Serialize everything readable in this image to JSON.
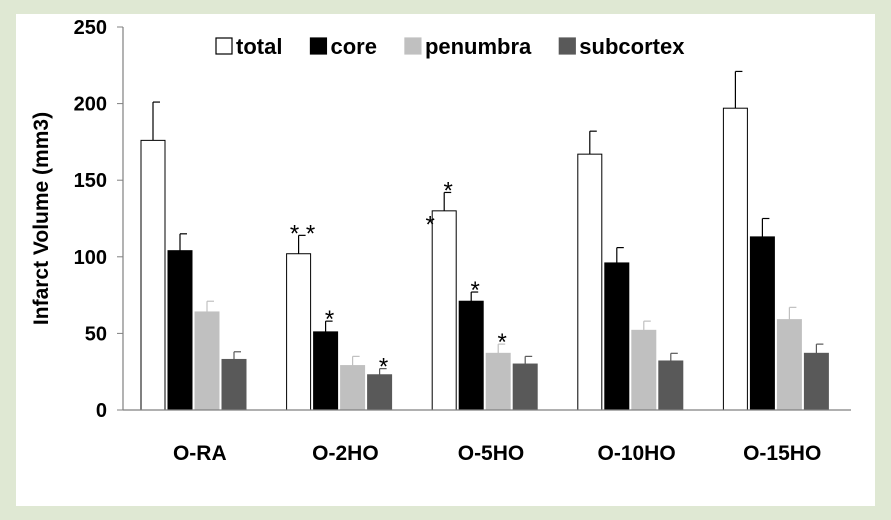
{
  "chart_data": {
    "type": "bar",
    "title": "",
    "xlabel": "",
    "ylabel": "Infarct Volume (mm3)",
    "ylim": [
      0,
      250
    ],
    "yticks": [
      0,
      50,
      100,
      150,
      200,
      250
    ],
    "grid": false,
    "legend_position": "top",
    "categories": [
      "O-RA",
      "O-2HO",
      "O-5HO",
      "O-10HO",
      "O-15HO"
    ],
    "series": [
      {
        "name": "total",
        "color": "#ffffff",
        "edge": "#000000",
        "values": [
          176,
          102,
          130,
          167,
          197
        ],
        "errors": [
          25,
          12,
          12,
          15,
          24
        ]
      },
      {
        "name": "core",
        "color": "#000000",
        "edge": "#000000",
        "values": [
          104,
          51,
          71,
          96,
          113
        ],
        "errors": [
          11,
          7,
          6,
          10,
          12
        ]
      },
      {
        "name": "penumbra",
        "color": "#c0c0c0",
        "edge": "#c0c0c0",
        "values": [
          64,
          29,
          37,
          52,
          59
        ],
        "errors": [
          7,
          6,
          6,
          6,
          8
        ]
      },
      {
        "name": "subcortex",
        "color": "#595959",
        "edge": "#595959",
        "values": [
          33,
          23,
          30,
          32,
          37
        ],
        "errors": [
          5,
          4,
          5,
          5,
          6
        ]
      }
    ],
    "annotations": [
      {
        "category": "O-2HO",
        "series": "total",
        "text": "* *"
      },
      {
        "category": "O-2HO",
        "series": "core",
        "text": "*"
      },
      {
        "category": "O-2HO",
        "series": "subcortex",
        "text": "*"
      },
      {
        "category": "O-5HO",
        "series": "total",
        "text": "*"
      },
      {
        "category": "O-5HO",
        "series": "total",
        "text": "*"
      },
      {
        "category": "O-5HO",
        "series": "core",
        "text": "*"
      },
      {
        "category": "O-5HO",
        "series": "penumbra",
        "text": "*"
      }
    ]
  }
}
